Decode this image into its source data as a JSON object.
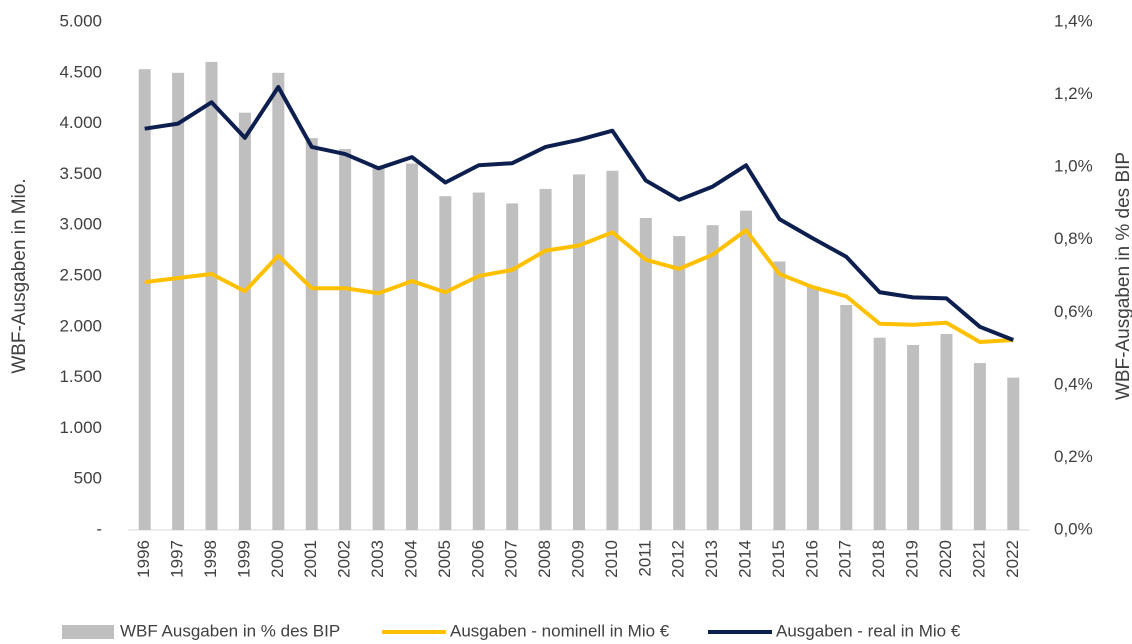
{
  "chart_data": {
    "type": "bar-line",
    "y_label": "WBF-Ausgaben in Mio.",
    "y2_label": "WBF-Ausgaben in % des BIP",
    "categories": [
      "1996",
      "1997",
      "1998",
      "1999",
      "2000",
      "2001",
      "2002",
      "2003",
      "2004",
      "2005",
      "2006",
      "2007",
      "2008",
      "2009",
      "2010",
      "2011",
      "2012",
      "2013",
      "2014",
      "2015",
      "2016",
      "2017",
      "2018",
      "2019",
      "2020",
      "2021",
      "2022"
    ],
    "series": [
      {
        "name": "WBF Ausgaben in % des BIP",
        "kind": "bar",
        "axis": "y2",
        "color": "#bfbfbf",
        "values": [
          1.27,
          1.26,
          1.29,
          1.15,
          1.26,
          1.08,
          1.05,
          1.0,
          1.01,
          0.92,
          0.93,
          0.9,
          0.94,
          0.98,
          0.99,
          0.86,
          0.81,
          0.84,
          0.88,
          0.74,
          0.67,
          0.62,
          0.53,
          0.51,
          0.54,
          0.46,
          0.42
        ]
      },
      {
        "name": "Ausgaben - nominell in Mio €",
        "kind": "line",
        "color": "#ffc000",
        "values": [
          2440,
          2480,
          2520,
          2350,
          2700,
          2380,
          2380,
          2330,
          2450,
          2340,
          2500,
          2560,
          2750,
          2800,
          2930,
          2660,
          2570,
          2710,
          2950,
          2520,
          2390,
          2300,
          2030,
          2020,
          2040,
          1850,
          1870
        ]
      },
      {
        "name": "Ausgaben - real in Mio €",
        "kind": "line",
        "color": "#0d1f4f",
        "values": [
          3950,
          4000,
          4210,
          3860,
          4360,
          3770,
          3700,
          3560,
          3670,
          3420,
          3590,
          3610,
          3770,
          3840,
          3930,
          3440,
          3250,
          3380,
          3590,
          3060,
          2870,
          2690,
          2340,
          2290,
          2280,
          2000,
          1870
        ]
      }
    ],
    "ylim": [
      0,
      5000
    ],
    "yticks": [
      {
        "value": 0,
        "label": "-"
      },
      500,
      {
        "value": 1000,
        "label": "1.000"
      },
      {
        "value": 1500,
        "label": "1.500"
      },
      {
        "value": 2000,
        "label": "2.000"
      },
      {
        "value": 2500,
        "label": "2.500"
      },
      {
        "value": 3000,
        "label": "3.000"
      },
      {
        "value": 3500,
        "label": "3.500"
      },
      {
        "value": 4000,
        "label": "4.000"
      },
      {
        "value": 4500,
        "label": "4.500"
      },
      {
        "value": 5000,
        "label": "5.000"
      }
    ],
    "y2lim": [
      0,
      1.4
    ],
    "y2ticks": [
      {
        "value": 0,
        "label": "0,0%"
      },
      {
        "value": 0.2,
        "label": "0,2%"
      },
      {
        "value": 0.4,
        "label": "0,4%"
      },
      {
        "value": 0.6,
        "label": "0,6%"
      },
      {
        "value": 0.8,
        "label": "0,8%"
      },
      {
        "value": 1.0,
        "label": "1,0%"
      },
      {
        "value": 1.2,
        "label": "1,2%"
      },
      {
        "value": 1.4,
        "label": "1,4%"
      }
    ],
    "grid": false,
    "legend": "bottom"
  }
}
